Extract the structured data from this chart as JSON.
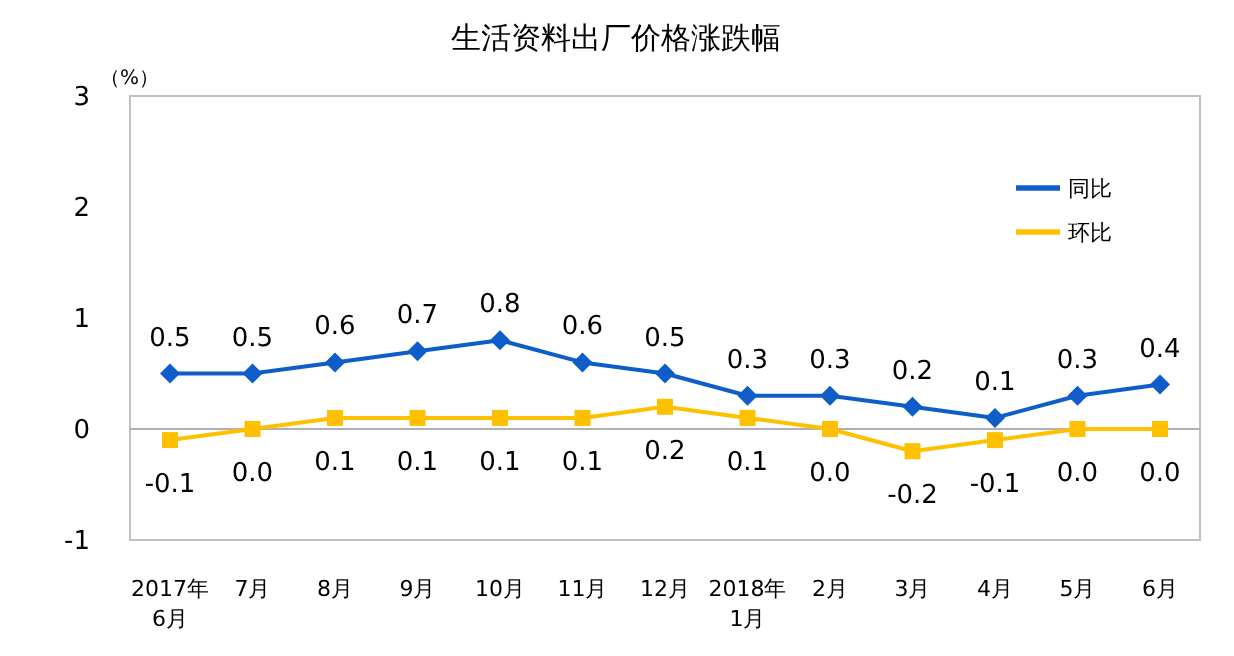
{
  "chart_data": {
    "type": "line",
    "title": "生活资料出厂价格涨跌幅",
    "ylabel": "（%）",
    "categories": [
      "2017年\n6月",
      "7月",
      "8月",
      "9月",
      "10月",
      "11月",
      "12月",
      "2018年\n1月",
      "2月",
      "3月",
      "4月",
      "5月",
      "6月"
    ],
    "series": [
      {
        "name": "同比",
        "color": "#0e5dc9",
        "marker": "diamond",
        "values": [
          0.5,
          0.5,
          0.6,
          0.7,
          0.8,
          0.6,
          0.5,
          0.3,
          0.3,
          0.2,
          0.1,
          0.3,
          0.4
        ],
        "value_labels": [
          "0.5",
          "0.5",
          "0.6",
          "0.7",
          "0.8",
          "0.6",
          "0.5",
          "0.3",
          "0.3",
          "0.2",
          "0.1",
          "0.3",
          "0.4"
        ]
      },
      {
        "name": "环比",
        "color": "#ffc000",
        "marker": "square",
        "values": [
          -0.1,
          0.0,
          0.1,
          0.1,
          0.1,
          0.1,
          0.2,
          0.1,
          0.0,
          -0.2,
          -0.1,
          0.0,
          0.0
        ],
        "value_labels": [
          "-0.1",
          "0.0",
          "0.1",
          "0.1",
          "0.1",
          "0.1",
          "0.2",
          "0.1",
          "0.0",
          "-0.2",
          "-0.1",
          "0.0",
          "0.0"
        ]
      }
    ],
    "ref_lines": [
      {
        "axis": "y",
        "value": 0,
        "color": "#b0b0b0"
      }
    ],
    "ylim": [
      -1,
      3
    ],
    "yticks": [
      -1,
      0,
      1,
      2,
      3
    ],
    "legend": "right",
    "line_style": "solid"
  }
}
